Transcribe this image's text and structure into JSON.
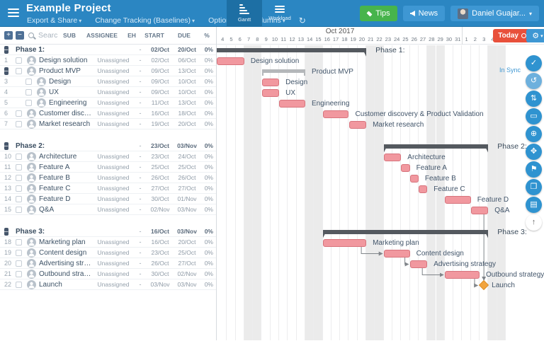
{
  "topbar": {
    "title": "Example Project",
    "menus": [
      {
        "id": "export-share",
        "label": "Export & Share"
      },
      {
        "id": "change-tracking",
        "label": "Change Tracking (Baselines)"
      },
      {
        "id": "options",
        "label": "Options"
      },
      {
        "id": "columns",
        "label": "Columns"
      }
    ],
    "refresh_glyph": "↻",
    "tabs": [
      {
        "id": "gantt",
        "label": "Gantt",
        "active": true
      },
      {
        "id": "workload",
        "label": "Workload",
        "active": false
      }
    ],
    "tips_label": "Tips",
    "news_label": "News",
    "user_label": "Daniel Guajar..."
  },
  "table": {
    "search_placeholder": "Search",
    "headers": {
      "sub": "SUB",
      "assignee": "ASSIGNEE",
      "eh": "EH",
      "start": "START",
      "due": "DUE",
      "pct": "%"
    }
  },
  "rows": [
    {
      "type": "phase",
      "name": "Phase 1:",
      "assignee": "",
      "eh": "-",
      "start": "02/Oct",
      "due": "20/Oct",
      "pct": "0%",
      "bar": {
        "kind": "phase",
        "s": 0,
        "e": 17,
        "clip": true,
        "label": "Phase 1:"
      }
    },
    {
      "type": "task",
      "num": "1",
      "name": "Design solution",
      "assignee": "Unassigned",
      "eh": "-",
      "start": "02/Oct",
      "due": "06/Oct",
      "pct": "0%",
      "bar": {
        "kind": "task",
        "s": 0,
        "e": 3,
        "clip": true,
        "label": "Design solution"
      }
    },
    {
      "type": "task",
      "num": "",
      "collapse": true,
      "name": "Product MVP",
      "assignee": "Unassigned",
      "eh": "-",
      "start": "09/Oct",
      "due": "13/Oct",
      "pct": "0%",
      "bar": {
        "kind": "summary",
        "s": 5,
        "e": 10,
        "label": "Product MVP"
      }
    },
    {
      "type": "subtask",
      "num": "3",
      "name": "Design",
      "assignee": "Unassigned",
      "eh": "-",
      "start": "09/Oct",
      "due": "10/Oct",
      "pct": "0%",
      "bar": {
        "kind": "task",
        "s": 5,
        "e": 7,
        "label": "Design"
      }
    },
    {
      "type": "subtask",
      "num": "4",
      "name": "UX",
      "assignee": "Unassigned",
      "eh": "-",
      "start": "09/Oct",
      "due": "10/Oct",
      "pct": "0%",
      "bar": {
        "kind": "task",
        "s": 5,
        "e": 7,
        "label": "UX"
      }
    },
    {
      "type": "subtask",
      "num": "5",
      "name": "Engineering",
      "assignee": "Unassigned",
      "eh": "-",
      "start": "11/Oct",
      "due": "13/Oct",
      "pct": "0%",
      "bar": {
        "kind": "task",
        "s": 7,
        "e": 10,
        "label": "Engineering"
      }
    },
    {
      "type": "task",
      "num": "6",
      "name": "Customer discovery & ...",
      "assignee": "Unassigned",
      "eh": "-",
      "start": "16/Oct",
      "due": "18/Oct",
      "pct": "0%",
      "bar": {
        "kind": "task",
        "s": 12,
        "e": 15,
        "label": "Customer discovery & Product Validation"
      }
    },
    {
      "type": "task",
      "num": "7",
      "name": "Market research",
      "assignee": "Unassigned",
      "eh": "-",
      "start": "19/Oct",
      "due": "20/Oct",
      "pct": "0%",
      "bar": {
        "kind": "task",
        "s": 15,
        "e": 17,
        "label": "Market research"
      }
    },
    {
      "type": "spacer"
    },
    {
      "type": "phase",
      "name": "Phase 2:",
      "assignee": "",
      "eh": "-",
      "start": "23/Oct",
      "due": "03/Nov",
      "pct": "0%",
      "bar": {
        "kind": "phase",
        "s": 19,
        "e": 31,
        "label": "Phase 2:"
      }
    },
    {
      "type": "task",
      "num": "10",
      "name": "Architecture",
      "assignee": "Unassigned",
      "eh": "-",
      "start": "23/Oct",
      "due": "24/Oct",
      "pct": "0%",
      "bar": {
        "kind": "task",
        "s": 19,
        "e": 21,
        "label": "Architecture"
      }
    },
    {
      "type": "task",
      "num": "11",
      "name": "Feature A",
      "assignee": "Unassigned",
      "eh": "-",
      "start": "25/Oct",
      "due": "25/Oct",
      "pct": "0%",
      "bar": {
        "kind": "task",
        "s": 21,
        "e": 22,
        "label": "Feature A"
      }
    },
    {
      "type": "task",
      "num": "12",
      "name": "Feature B",
      "assignee": "Unassigned",
      "eh": "-",
      "start": "26/Oct",
      "due": "26/Oct",
      "pct": "0%",
      "bar": {
        "kind": "task",
        "s": 22,
        "e": 23,
        "label": "Feature B"
      }
    },
    {
      "type": "task",
      "num": "13",
      "name": "Feature C",
      "assignee": "Unassigned",
      "eh": "-",
      "start": "27/Oct",
      "due": "27/Oct",
      "pct": "0%",
      "bar": {
        "kind": "task",
        "s": 23,
        "e": 24,
        "label": "Feature C"
      }
    },
    {
      "type": "task",
      "num": "14",
      "name": "Feature D",
      "assignee": "Unassigned",
      "eh": "-",
      "start": "30/Oct",
      "due": "01/Nov",
      "pct": "0%",
      "bar": {
        "kind": "task",
        "s": 26,
        "e": 29,
        "label": "Feature D"
      }
    },
    {
      "type": "task",
      "num": "15",
      "name": "Q&A",
      "assignee": "Unassigned",
      "eh": "-",
      "start": "02/Nov",
      "due": "03/Nov",
      "pct": "0%",
      "bar": {
        "kind": "task",
        "s": 29,
        "e": 31,
        "label": "Q&A"
      }
    },
    {
      "type": "spacer"
    },
    {
      "type": "phase",
      "name": "Phase 3:",
      "assignee": "",
      "eh": "-",
      "start": "16/Oct",
      "due": "03/Nov",
      "pct": "0%",
      "bar": {
        "kind": "phase",
        "s": 12,
        "e": 31,
        "label": "Phase 3:"
      }
    },
    {
      "type": "task",
      "num": "18",
      "name": "Marketing plan",
      "assignee": "Unassigned",
      "eh": "-",
      "start": "16/Oct",
      "due": "20/Oct",
      "pct": "0%",
      "bar": {
        "kind": "task",
        "s": 12,
        "e": 17,
        "label": "Marketing plan"
      }
    },
    {
      "type": "task",
      "num": "19",
      "name": "Content design",
      "assignee": "Unassigned",
      "eh": "-",
      "start": "23/Oct",
      "due": "25/Oct",
      "pct": "0%",
      "bar": {
        "kind": "task",
        "s": 19,
        "e": 22,
        "label": "Content design"
      }
    },
    {
      "type": "task",
      "num": "20",
      "name": "Advertising strategy",
      "assignee": "Unassigned",
      "eh": "-",
      "start": "26/Oct",
      "due": "27/Oct",
      "pct": "0%",
      "bar": {
        "kind": "task",
        "s": 22,
        "e": 24,
        "label": "Advertising strategy"
      }
    },
    {
      "type": "task",
      "num": "21",
      "name": "Outbound strategy",
      "assignee": "Unassigned",
      "eh": "-",
      "start": "30/Oct",
      "due": "02/Nov",
      "pct": "0%",
      "bar": {
        "kind": "task",
        "s": 26,
        "e": 30,
        "label": "Outbound strategy"
      }
    },
    {
      "type": "task",
      "num": "22",
      "name": "Launch",
      "assignee": "Unassigned",
      "eh": "-",
      "start": "03/Nov",
      "due": "03/Nov",
      "pct": "0%",
      "bar": {
        "kind": "milestone",
        "s": 30,
        "e": 31,
        "label": "Launch"
      }
    }
  ],
  "chart": {
    "month_label": "Oct 2017",
    "today_label": "Today",
    "in_sync_label": "In Sync",
    "days": [
      "4",
      "5",
      "6",
      "7",
      "8",
      "9",
      "10",
      "11",
      "12",
      "13",
      "14",
      "15",
      "16",
      "17",
      "18",
      "19",
      "20",
      "21",
      "22",
      "23",
      "24",
      "25",
      "26",
      "27",
      "28",
      "29",
      "30",
      "31",
      "1",
      "2",
      "3",
      "4",
      "5"
    ],
    "weekend_indices": [
      3,
      4,
      10,
      11,
      17,
      18,
      24,
      25,
      31,
      32
    ],
    "dependencies": [
      {
        "from": 18,
        "to": 19
      },
      {
        "from": 19,
        "to": 20
      },
      {
        "from": 20,
        "to": 21
      },
      {
        "from": 21,
        "to": 22,
        "to_milestone": true
      },
      {
        "from": 15,
        "to": 22,
        "vertical": true
      }
    ]
  },
  "sidebar_icons": [
    {
      "id": "sync-check",
      "glyph": "✓"
    },
    {
      "id": "undo",
      "glyph": "↺",
      "muted": true
    },
    {
      "id": "sort-tasks",
      "glyph": "⇅"
    },
    {
      "id": "panel-view",
      "glyph": "▭"
    },
    {
      "id": "zoom",
      "glyph": "⊕"
    },
    {
      "id": "fit-screen",
      "glyph": "✥"
    },
    {
      "id": "milestone-flag",
      "glyph": "⚑"
    },
    {
      "id": "duplicate",
      "glyph": "❐"
    },
    {
      "id": "overview-map",
      "glyph": "▤"
    },
    {
      "id": "scroll-to-top",
      "glyph": "↑",
      "light": true
    }
  ],
  "colors": {
    "header_blue": "#2b86c2",
    "active_tab_blue": "#1d6fa4",
    "tips_green": "#47b44c",
    "button_blue": "#3e97d3",
    "today_red": "#e8503b",
    "task_bar_fill": "#f1989f",
    "task_bar_border": "#d7747d",
    "phase_bar": "#54595f",
    "summary_bar": "#b4b7ba",
    "milestone_orange": "#f2a43d",
    "weekend_gray": "#ebebeb"
  }
}
